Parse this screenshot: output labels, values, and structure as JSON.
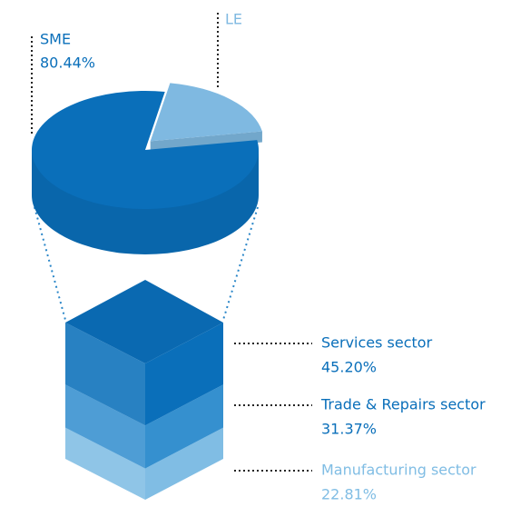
{
  "chart_data": [
    {
      "type": "pie",
      "categories": [
        "SME",
        "LE"
      ],
      "values": [
        80.44,
        19.56
      ],
      "value_labels": [
        "80.44%",
        null
      ],
      "colors": [
        "#0a6fba",
        "#7fb9e1"
      ]
    },
    {
      "type": "stack",
      "categories": [
        "Services sector",
        "Trade & Repairs sector",
        "Manufacturing sector"
      ],
      "values": [
        45.2,
        31.37,
        22.81
      ],
      "value_labels": [
        "45.20%",
        "31.37%",
        "22.81%"
      ],
      "colors": [
        "#0a6fba",
        "#3590cf",
        "#80bde4"
      ]
    }
  ]
}
